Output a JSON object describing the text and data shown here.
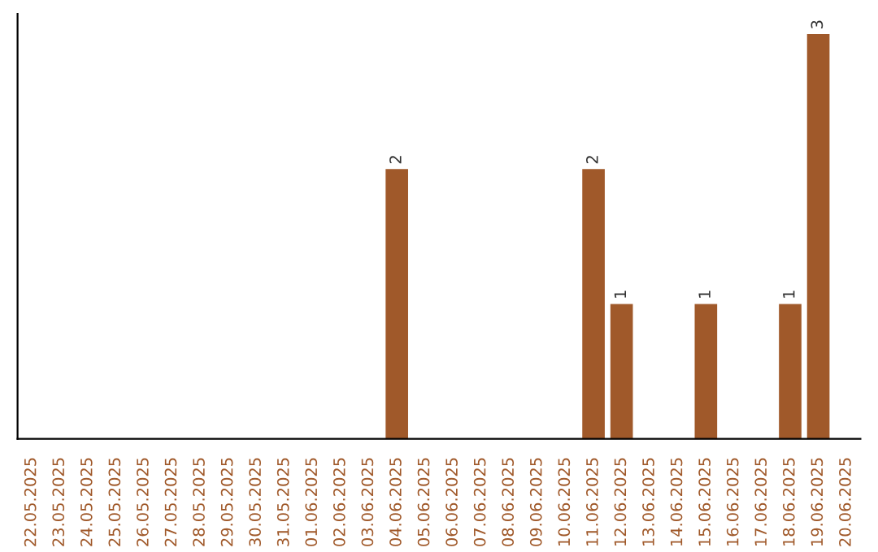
{
  "chart_data": {
    "type": "bar",
    "categories": [
      "22.05.2025",
      "23.05.2025",
      "24.05.2025",
      "25.05.2025",
      "26.05.2025",
      "27.05.2025",
      "28.05.2025",
      "29.05.2025",
      "30.05.2025",
      "31.05.2025",
      "01.06.2025",
      "02.06.2025",
      "03.06.2025",
      "04.06.2025",
      "05.06.2025",
      "06.06.2025",
      "07.06.2025",
      "08.06.2025",
      "09.06.2025",
      "10.06.2025",
      "11.06.2025",
      "12.06.2025",
      "13.06.2025",
      "14.06.2025",
      "15.06.2025",
      "16.06.2025",
      "17.06.2025",
      "18.06.2025",
      "19.06.2025",
      "20.06.2025"
    ],
    "values": [
      null,
      null,
      null,
      null,
      null,
      null,
      null,
      null,
      null,
      null,
      null,
      null,
      null,
      2,
      null,
      null,
      null,
      null,
      null,
      null,
      2,
      1,
      null,
      null,
      1,
      null,
      null,
      1,
      3,
      null
    ],
    "data_labels": true,
    "color": "#a0592a",
    "grid": false,
    "legend": false,
    "tick_labels": "x"
  }
}
